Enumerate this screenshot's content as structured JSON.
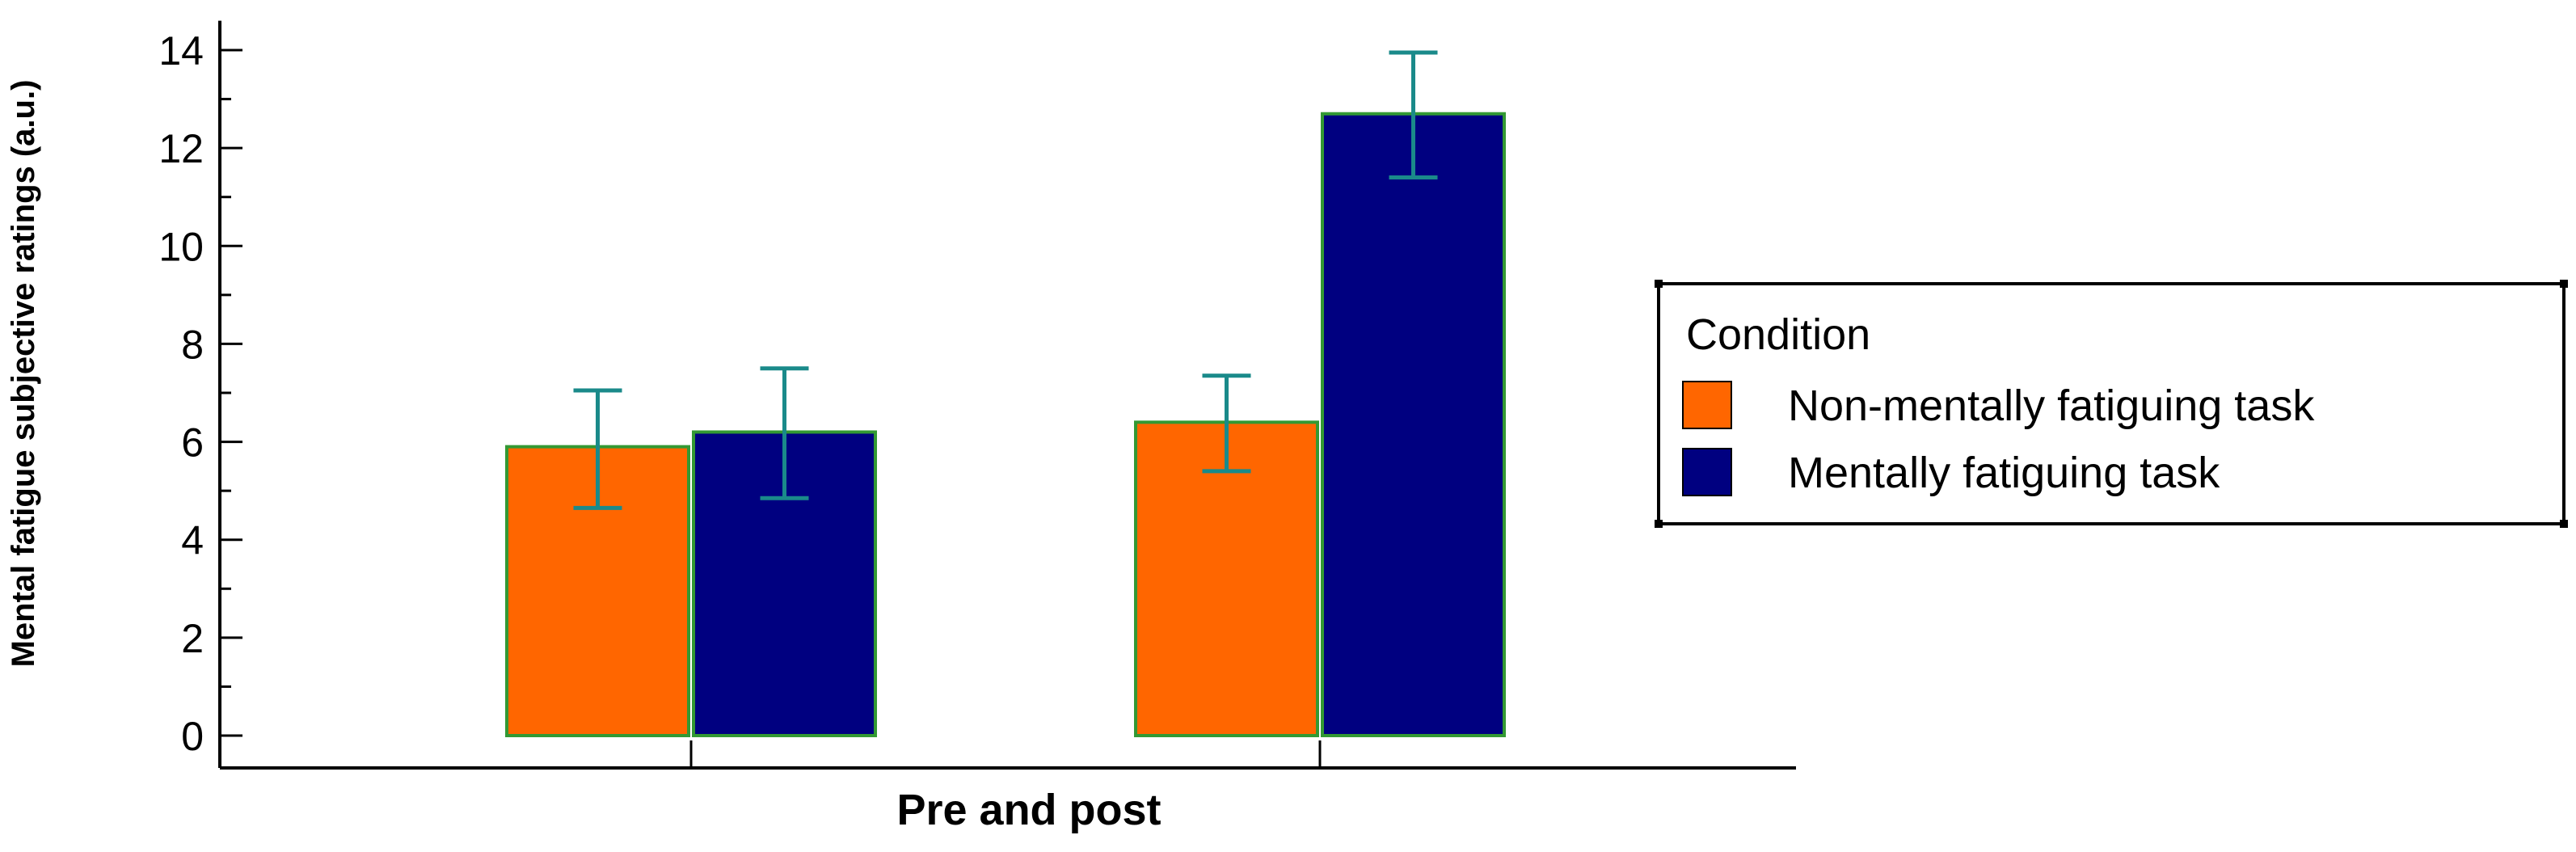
{
  "chart_data": {
    "type": "bar",
    "title": "",
    "xlabel": "Pre and post",
    "ylabel": "Mental fatigue subjective ratings (a.u.)",
    "ylim": [
      0,
      14.6
    ],
    "yticks": [
      0,
      2,
      4,
      6,
      8,
      10,
      12,
      14
    ],
    "categories": [
      "",
      ""
    ],
    "series": [
      {
        "name": "Non-mentally fatiguing task",
        "color": "#ff6600",
        "values": [
          5.9,
          6.4
        ],
        "error_low": [
          4.65,
          5.4
        ],
        "error_high": [
          7.05,
          7.35
        ]
      },
      {
        "name": "Mentally fatiguing task",
        "color": "#000080",
        "values": [
          6.2,
          12.7
        ],
        "error_low": [
          4.85,
          11.4
        ],
        "error_high": [
          7.5,
          13.95
        ]
      }
    ],
    "bar_outline_color": "#339933",
    "error_bar_color": "#1a8a8a",
    "legend": {
      "title": "Condition",
      "placement": "right"
    },
    "grid": false
  }
}
